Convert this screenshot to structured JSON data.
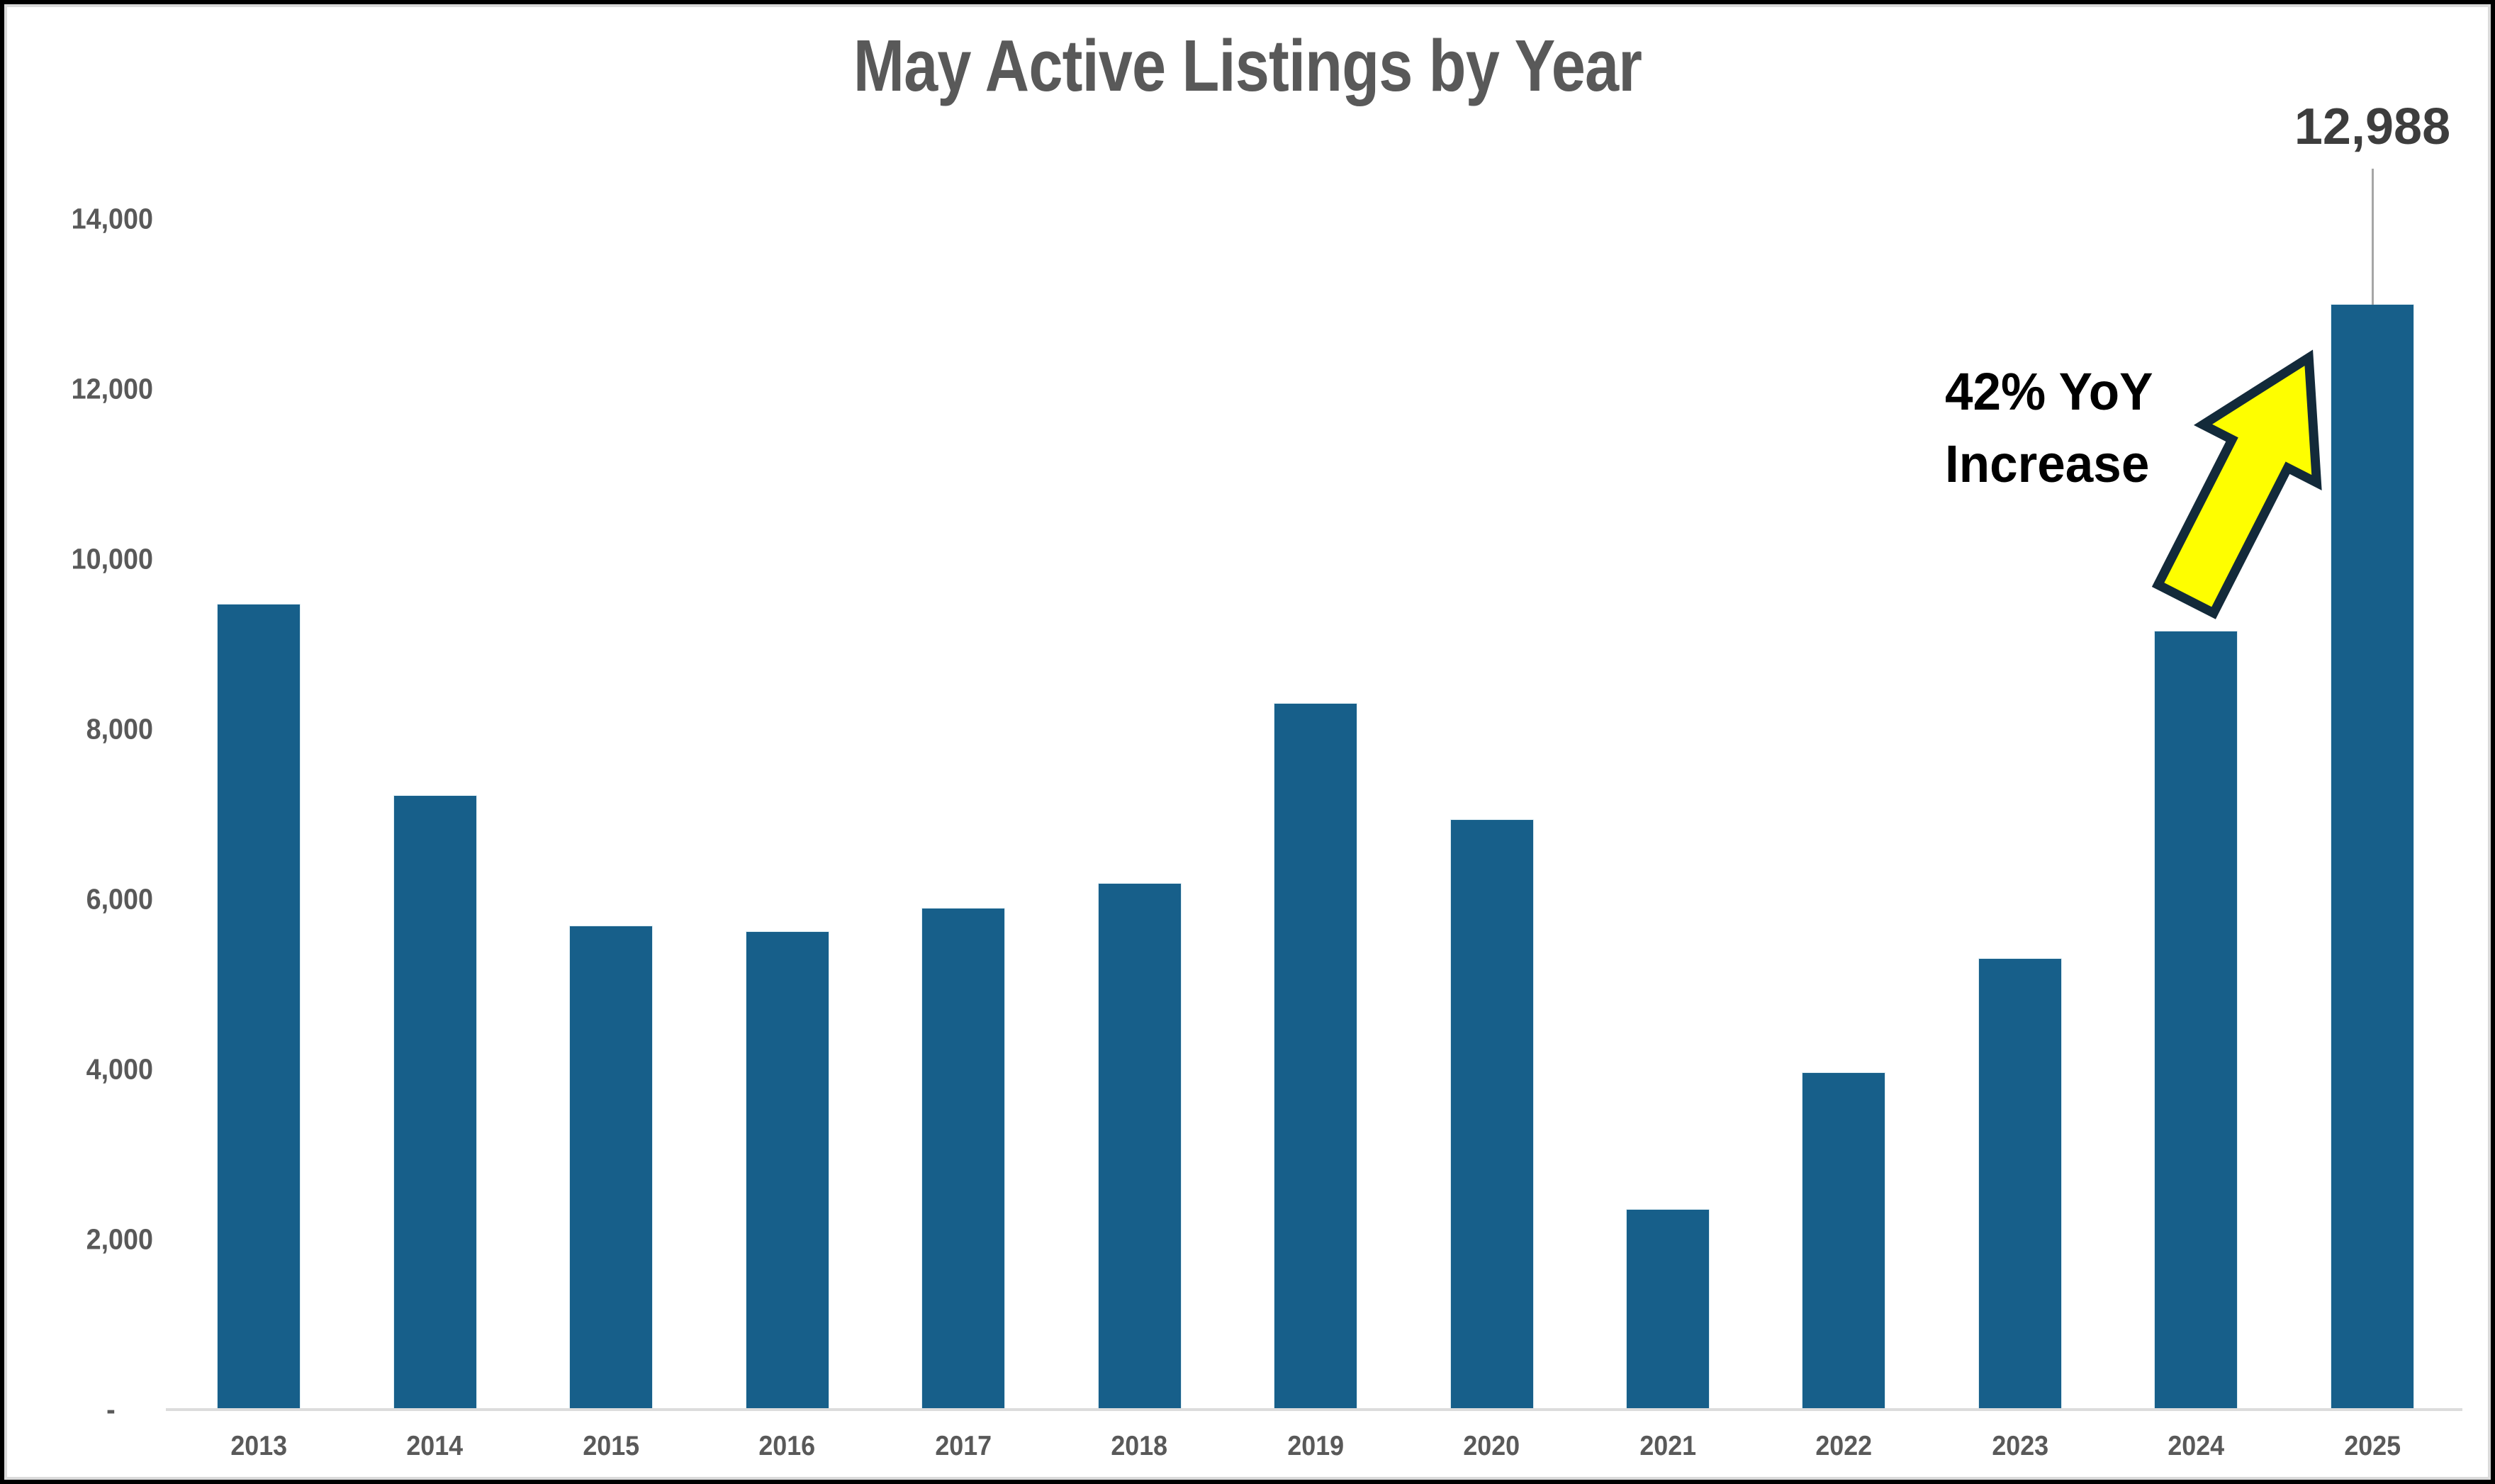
{
  "chart_data": {
    "type": "bar",
    "title": "May Active Listings by Year",
    "categories": [
      "2013",
      "2014",
      "2015",
      "2016",
      "2017",
      "2018",
      "2019",
      "2020",
      "2021",
      "2022",
      "2023",
      "2024",
      "2025"
    ],
    "values": [
      9470,
      7220,
      5680,
      5620,
      5890,
      6180,
      8300,
      6930,
      2350,
      3960,
      5300,
      9150,
      12988
    ],
    "xlabel": "",
    "ylabel": "",
    "ylim": [
      0,
      14000
    ],
    "ytick_step": 2000,
    "yticks": [
      {
        "label": "14,000",
        "value": 14000
      },
      {
        "label": "12,000",
        "value": 12000
      },
      {
        "label": "10,000",
        "value": 10000
      },
      {
        "label": "8,000",
        "value": 8000
      },
      {
        "label": "6,000",
        "value": 6000
      },
      {
        "label": "4,000",
        "value": 4000
      },
      {
        "label": "2,000",
        "value": 2000
      },
      {
        "label": "-",
        "value": 0
      }
    ],
    "grid": false,
    "legend": false,
    "bar_color": "#175f8a",
    "highlight": {
      "category": "2025",
      "data_label": "12,988",
      "leader_line": true
    }
  },
  "annotation": {
    "line1": "42% YoY",
    "line2": "Increase",
    "arrow_fill": "#fefe00",
    "arrow_outline": "#132a3a"
  },
  "colors": {
    "title_text": "#595959",
    "axis_text": "#595959",
    "data_label_text": "#3d3d3d",
    "annotation_text": "#000000",
    "axis_line": "#dcdcdc",
    "leader_line": "#a6a6a6",
    "bar": "#175f8a",
    "background": "#ffffff",
    "frame_border": "#000000",
    "frame_inner_edge": "#dadada"
  }
}
